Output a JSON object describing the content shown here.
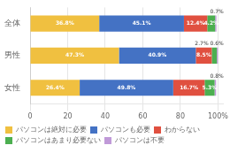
{
  "chart_data": {
    "type": "bar",
    "orientation": "horizontal",
    "stacked": true,
    "categories": [
      "全体",
      "男性",
      "女性"
    ],
    "series": [
      {
        "name": "パソコンは絶対に必要",
        "color": "#f0c040",
        "values": [
          36.8,
          47.3,
          26.4
        ],
        "value_labels": [
          "36.8%",
          "47.3%",
          "26.4%"
        ]
      },
      {
        "name": "パソコンも必要",
        "color": "#4472c4",
        "values": [
          45.1,
          40.9,
          49.8
        ],
        "value_labels": [
          "45.1%",
          "40.9%",
          "49.8%"
        ]
      },
      {
        "name": "わからない",
        "color": "#e05040",
        "values": [
          12.4,
          8.5,
          16.7
        ],
        "value_labels": [
          "12.4%",
          "8.5%",
          "16.7%"
        ]
      },
      {
        "name": "パソコンはあまり必要ない",
        "color": "#4caf50",
        "values": [
          4.2,
          2.7,
          5.3
        ],
        "value_labels": [
          "4.2%",
          null,
          "5.3%"
        ]
      },
      {
        "name": "パソコンは不要",
        "color": "#c09ad8",
        "values": [
          0.7,
          0.6,
          0.8
        ],
        "value_labels": [
          null,
          null,
          null
        ]
      }
    ],
    "annotations": [
      {
        "text": "0.7%",
        "category": "全体"
      },
      {
        "text": "2.7% 0.6%",
        "category": "男性"
      },
      {
        "text": "0.8%",
        "category": "女性"
      }
    ],
    "xlim": [
      0,
      103
    ],
    "xticks": [
      0,
      20,
      40,
      60,
      80,
      {
        "value": 100,
        "label": "100%"
      }
    ],
    "grid": true,
    "legend": "bottom",
    "data_labels": true
  }
}
